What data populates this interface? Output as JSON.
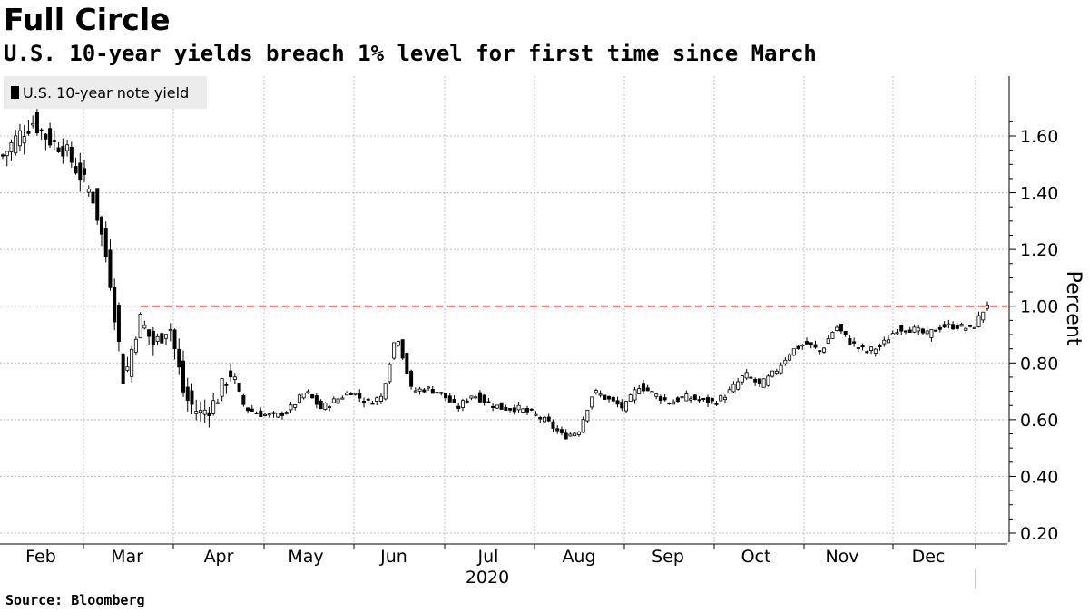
{
  "title": "Full Circle",
  "subtitle": "U.S. 10-year yields breach 1% level for first time since March",
  "source": "Source: Bloomberg",
  "colors": {
    "candle": "#000000",
    "reference_line": "#ff0000",
    "grid": "#bfbfbf",
    "legend_bg": "#ececec"
  },
  "chart_data": {
    "type": "candlestick",
    "series": [
      {
        "name": "U.S. 10-year note yield"
      }
    ],
    "ylabel": "Percent",
    "xlabel": "2020",
    "ylim": [
      0.17,
      1.79
    ],
    "yticks": [
      0.2,
      0.4,
      0.6,
      0.8,
      1.0,
      1.2,
      1.4,
      1.6
    ],
    "ytick_labels": [
      "0.20",
      "0.40",
      "0.60",
      "0.80",
      "1.00",
      "1.20",
      "1.40",
      "1.60"
    ],
    "x_months": [
      "Feb",
      "Mar",
      "Apr",
      "May",
      "Jun",
      "Jul",
      "Aug",
      "Sep",
      "Oct",
      "Nov",
      "Dec"
    ],
    "x_year": "2020",
    "reference_line": {
      "value": 1.0,
      "style": "dashed",
      "from_month": "Mar"
    },
    "grid": true,
    "legend_position": "top-left",
    "weekly_closes": [
      1.53,
      1.6,
      1.65,
      1.59,
      1.56,
      1.47,
      1.38,
      1.13,
      0.73,
      0.96,
      0.86,
      0.94,
      0.68,
      0.62,
      0.66,
      0.77,
      0.64,
      0.62,
      0.61,
      0.64,
      0.7,
      0.64,
      0.67,
      0.7,
      0.66,
      0.68,
      0.91,
      0.7,
      0.71,
      0.69,
      0.64,
      0.69,
      0.66,
      0.64,
      0.64,
      0.62,
      0.59,
      0.54,
      0.56,
      0.7,
      0.67,
      0.64,
      0.72,
      0.69,
      0.66,
      0.68,
      0.67,
      0.66,
      0.7,
      0.76,
      0.72,
      0.77,
      0.84,
      0.87,
      0.84,
      0.93,
      0.87,
      0.84,
      0.86,
      0.92,
      0.92,
      0.9,
      0.93,
      0.93,
      0.92,
      1.01
    ]
  }
}
